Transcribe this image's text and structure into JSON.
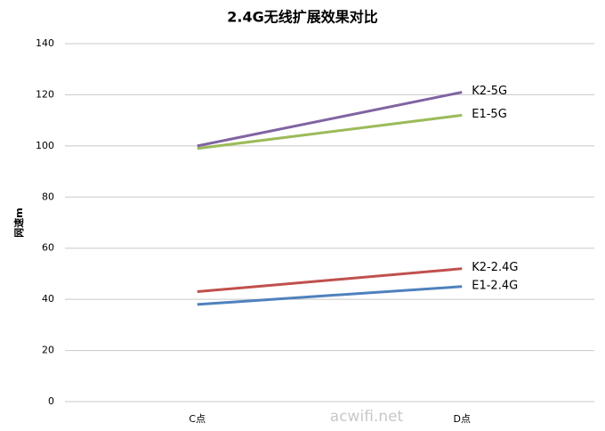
{
  "chart_data": {
    "type": "line",
    "title": "2.4G无线扩展效果对比",
    "y_label": "网速m",
    "categories": [
      "C点",
      "D点"
    ],
    "series": [
      {
        "name": "K2-5G",
        "color": "#8064a2",
        "values": [
          100,
          121
        ]
      },
      {
        "name": "E1-5G",
        "color": "#9bbb59",
        "values": [
          99,
          112
        ]
      },
      {
        "name": "K2-2.4G",
        "color": "#c0504d",
        "values": [
          43,
          52
        ]
      },
      {
        "name": "E1-2.4G",
        "color": "#4f81bd",
        "values": [
          38,
          45
        ]
      }
    ],
    "ylim": [
      0,
      140
    ],
    "yticks": [
      0,
      20,
      40,
      60,
      80,
      100,
      120,
      140
    ],
    "grid": true,
    "watermark": "acwifi.net"
  }
}
